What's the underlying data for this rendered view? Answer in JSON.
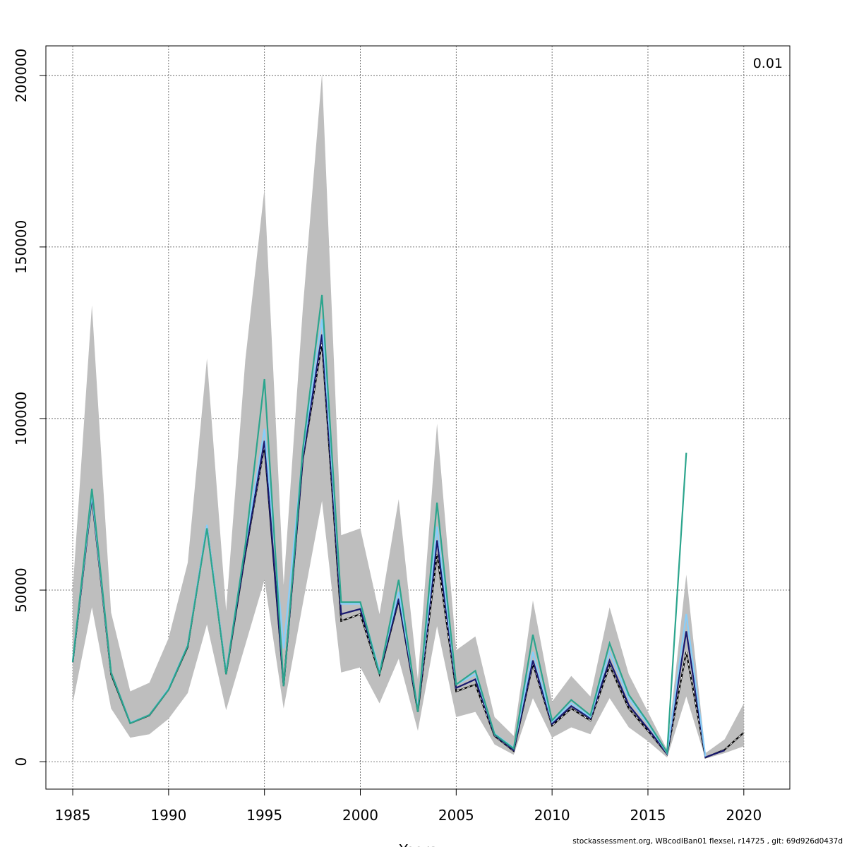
{
  "chart_data": {
    "type": "line",
    "title": "",
    "corner_label": "0.01",
    "xlabel": "Years",
    "ylabel": "",
    "xlim": [
      1983.6,
      2022.4
    ],
    "ylim": [
      -8000,
      208600
    ],
    "x_ticks": [
      "1985",
      "1990",
      "1995",
      "2000",
      "2005",
      "2010",
      "2015",
      "2020"
    ],
    "y_ticks": [
      "0",
      "50000",
      "100000",
      "150000",
      "200000"
    ],
    "grid": true,
    "legend": "none",
    "confidence_band": {
      "color": "#bebebe",
      "x": [
        1985,
        1986,
        1987,
        1988,
        1989,
        1990,
        1991,
        1992,
        1993,
        1994,
        1995,
        1996,
        1997,
        1998,
        1999,
        2000,
        2001,
        2002,
        2003,
        2004,
        2005,
        2006,
        2007,
        2008,
        2009,
        2010,
        2011,
        2012,
        2013,
        2014,
        2015,
        2016,
        2017,
        2018,
        2019,
        2020
      ],
      "lower": [
        17000,
        45000,
        15500,
        7000,
        8000,
        12500,
        20000,
        40000,
        15000,
        34000,
        53000,
        15500,
        46000,
        76000,
        26000,
        27500,
        17000,
        30000,
        9000,
        39500,
        13000,
        14500,
        5000,
        2000,
        18500,
        7000,
        10000,
        8000,
        18500,
        10000,
        6000,
        1200,
        19000,
        900,
        2500,
        4500
      ],
      "upper": [
        50000,
        133000,
        43500,
        20500,
        23000,
        36000,
        58000,
        117500,
        44000,
        117000,
        167000,
        51500,
        132000,
        200500,
        66000,
        68000,
        43000,
        76500,
        24000,
        98500,
        32500,
        36500,
        13000,
        7500,
        47000,
        17500,
        25000,
        19000,
        45000,
        25500,
        14500,
        3500,
        54500,
        2500,
        6500,
        17000
      ]
    },
    "series": [
      {
        "color": "#000000",
        "style": "dashed",
        "x": [
          1985,
          1986,
          1987,
          1988,
          1989,
          1990,
          1991,
          1992,
          1993,
          1994,
          1995,
          1996,
          1997,
          1998,
          1999,
          2000,
          2001,
          2002,
          2003,
          2004,
          2005,
          2006,
          2007,
          2008,
          2009,
          2010,
          2011,
          2012,
          2013,
          2014,
          2015,
          2016,
          2017,
          2018,
          2019,
          2020
        ],
        "values": [
          29000,
          77000,
          25500,
          11200,
          13500,
          21000,
          33500,
          68500,
          25500,
          60500,
          92000,
          22000,
          88000,
          122000,
          41000,
          43000,
          25500,
          47000,
          14500,
          60500,
          20500,
          22500,
          7500,
          3100,
          28500,
          10500,
          15500,
          12000,
          28000,
          15500,
          9000,
          2200,
          32000,
          1200,
          3500,
          8500
        ]
      },
      {
        "color": "#191970",
        "style": "solid",
        "x": [
          1985,
          1986,
          1987,
          1988,
          1989,
          1990,
          1991,
          1992,
          1993,
          1994,
          1995,
          1996,
          1997,
          1998,
          1999,
          2000,
          2001,
          2002,
          2003,
          2004,
          2005,
          2006,
          2007,
          2008,
          2009,
          2010,
          2011,
          2012,
          2013,
          2014,
          2015,
          2016,
          2017,
          2018,
          2019
        ],
        "values": [
          29000,
          77500,
          26000,
          11300,
          13600,
          21200,
          33800,
          68800,
          25800,
          61000,
          93500,
          22200,
          88500,
          124500,
          43000,
          44500,
          26000,
          47500,
          15000,
          64500,
          21500,
          24000,
          7800,
          3300,
          29500,
          11000,
          16200,
          12600,
          29500,
          16500,
          9600,
          2300,
          38000,
          1300,
          3300
        ]
      },
      {
        "color": "#87cefa",
        "style": "solid",
        "x": [
          1985,
          1986,
          1987,
          1988,
          1989,
          1990,
          1991,
          1992,
          1993,
          1994,
          1995,
          1996,
          1997,
          1998,
          1999,
          2000,
          2001,
          2002,
          2003,
          2004,
          2005,
          2006,
          2007,
          2008,
          2009,
          2010,
          2011,
          2012,
          2013,
          2014,
          2015,
          2016,
          2017,
          2018
        ],
        "values": [
          29500,
          78000,
          26000,
          11400,
          13600,
          21300,
          34000,
          69000,
          26000,
          63000,
          97000,
          33000,
          90000,
          129000,
          46000,
          46000,
          26500,
          49500,
          15500,
          68500,
          22500,
          25500,
          8200,
          4000,
          32000,
          11600,
          17000,
          13000,
          32000,
          18500,
          11000,
          2500,
          43000,
          1500
        ]
      },
      {
        "color": "#2ca58d",
        "style": "solid",
        "x": [
          1985,
          1986,
          1987,
          1988,
          1989,
          1990,
          1991,
          1992,
          1993,
          1994,
          1995,
          1996,
          1997,
          1998,
          1999,
          2000,
          2001,
          2002,
          2003,
          2004,
          2005,
          2006,
          2007,
          2008,
          2009,
          2010,
          2011,
          2012,
          2013,
          2014,
          2015,
          2016,
          2017
        ],
        "values": [
          29000,
          79500,
          26000,
          11200,
          13600,
          21000,
          33800,
          68000,
          25500,
          63000,
          111500,
          22000,
          91000,
          136000,
          46500,
          46500,
          25500,
          53000,
          14500,
          75500,
          22500,
          26500,
          8000,
          3800,
          37000,
          12000,
          18000,
          13500,
          34500,
          19500,
          11500,
          2700,
          90000
        ]
      }
    ]
  },
  "footer": "stockassessment.org, WBcodIBan01 flexsel, r14725 , git: 69d926d0437d"
}
